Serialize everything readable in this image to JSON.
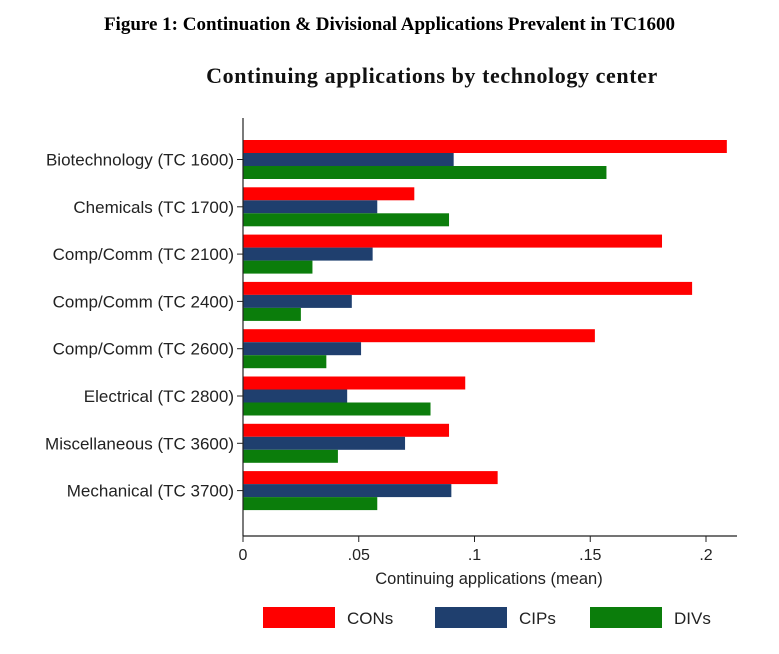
{
  "figure_caption": "Figure 1: Continuation & Divisional Applications Prevalent in TC1600",
  "chart_data": {
    "type": "bar",
    "orientation": "horizontal",
    "title": "Continuing applications by technology center",
    "xlabel": "Continuing applications (mean)",
    "ylabel": "",
    "xlim": [
      0,
      0.215
    ],
    "xticks": [
      0,
      0.05,
      0.1,
      0.15,
      0.2
    ],
    "xtick_labels": [
      "0",
      ".05",
      ".1",
      ".15",
      ".2"
    ],
    "grid": false,
    "legend_position": "bottom",
    "categories": [
      "Biotechnology (TC 1600)",
      "Chemicals (TC 1700)",
      "Comp/Comm (TC 2100)",
      "Comp/Comm (TC 2400)",
      "Comp/Comm (TC 2600)",
      "Electrical (TC 2800)",
      "Miscellaneous (TC 3600)",
      "Mechanical (TC 3700)"
    ],
    "series": [
      {
        "name": "CONs",
        "color": "#ff0000",
        "values": [
          0.209,
          0.074,
          0.181,
          0.194,
          0.152,
          0.096,
          0.089,
          0.11
        ]
      },
      {
        "name": "CIPs",
        "color": "#1f3f6e",
        "values": [
          0.091,
          0.058,
          0.056,
          0.047,
          0.051,
          0.045,
          0.07,
          0.09
        ]
      },
      {
        "name": "DIVs",
        "color": "#0b7d0b",
        "values": [
          0.157,
          0.089,
          0.03,
          0.025,
          0.036,
          0.081,
          0.041,
          0.058
        ]
      }
    ]
  }
}
